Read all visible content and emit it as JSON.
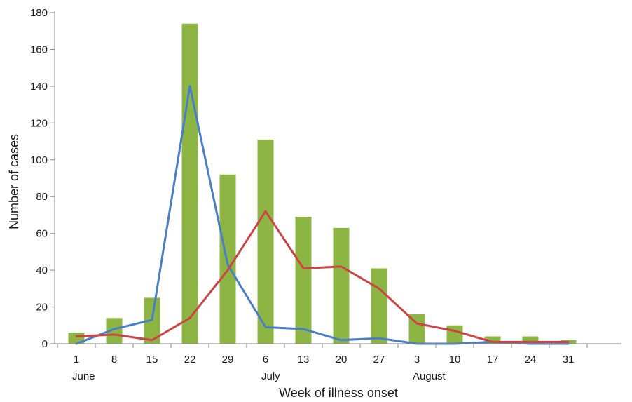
{
  "chart_data": {
    "type": "bar",
    "xlabel": "Week of illness onset",
    "ylabel": "Number of cases",
    "ylim": [
      0,
      180
    ],
    "yticks": [
      0,
      20,
      40,
      60,
      80,
      100,
      120,
      140,
      160,
      180
    ],
    "categories": [
      "1",
      "8",
      "15",
      "22",
      "29",
      "6",
      "13",
      "20",
      "27",
      "3",
      "10",
      "17",
      "24",
      "31"
    ],
    "month_labels": [
      {
        "label": "June",
        "at": 0
      },
      {
        "label": "July",
        "at": 5
      },
      {
        "label": "August",
        "at": 9
      }
    ],
    "grid": false,
    "legend": "none",
    "series": [
      {
        "type": "bar",
        "color": "#8db544",
        "values": [
          6,
          14,
          25,
          174,
          92,
          111,
          69,
          63,
          41,
          16,
          10,
          4,
          4,
          2
        ]
      },
      {
        "type": "line",
        "color": "#4a7ec6",
        "values": [
          0,
          8,
          13,
          140,
          43,
          9,
          8,
          2,
          3,
          0,
          0,
          1,
          0,
          0
        ]
      },
      {
        "type": "line",
        "color": "#cc4444",
        "values": [
          4,
          5,
          2,
          14,
          40,
          72,
          41,
          42,
          30,
          11,
          7,
          1,
          1,
          1
        ]
      }
    ]
  }
}
